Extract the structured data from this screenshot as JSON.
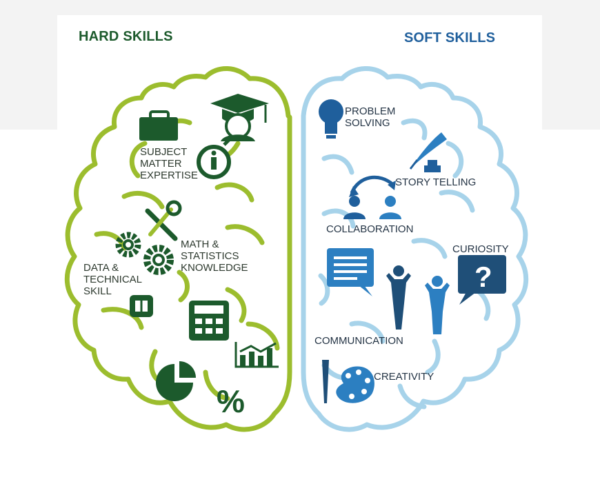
{
  "hard_skills": {
    "title": "HARD SKILLS",
    "color": "#1c5a2c",
    "outline_color": "#9cbd2e",
    "items": {
      "subject_matter": [
        "SUBJECT",
        "MATTER",
        "EXPERTISE"
      ],
      "math_stats": [
        "MATH &",
        "STATISTICS",
        "KNOWLEDGE"
      ],
      "data_technical": [
        "DATA &",
        "TECHNICAL",
        "SKILL"
      ]
    },
    "percent_symbol": "%",
    "info_symbol": "i"
  },
  "soft_skills": {
    "title": "SOFT SKILLS",
    "color": "#1f5f9c",
    "outline_color": "#a7d3ea",
    "items": {
      "problem_solving": [
        "PROBLEM",
        "SOLVING"
      ],
      "story_telling": "STORY TELLING",
      "collaboration": "COLLABORATION",
      "curiosity": "CURIOSITY",
      "communication": "COMMUNICATION",
      "creativity": "CREATIVITY"
    },
    "question_symbol": "?"
  },
  "icons": [
    "briefcase-icon",
    "graduation-cap-icon",
    "info-icon",
    "tools-icon",
    "gears-icon",
    "chip-icon",
    "calculator-icon",
    "bar-chart-icon",
    "pie-chart-icon",
    "percent-icon",
    "lightbulb-icon",
    "quill-icon",
    "collaboration-icon",
    "question-bubble-icon",
    "speech-bubble-icon",
    "people-icon",
    "palette-icon"
  ]
}
